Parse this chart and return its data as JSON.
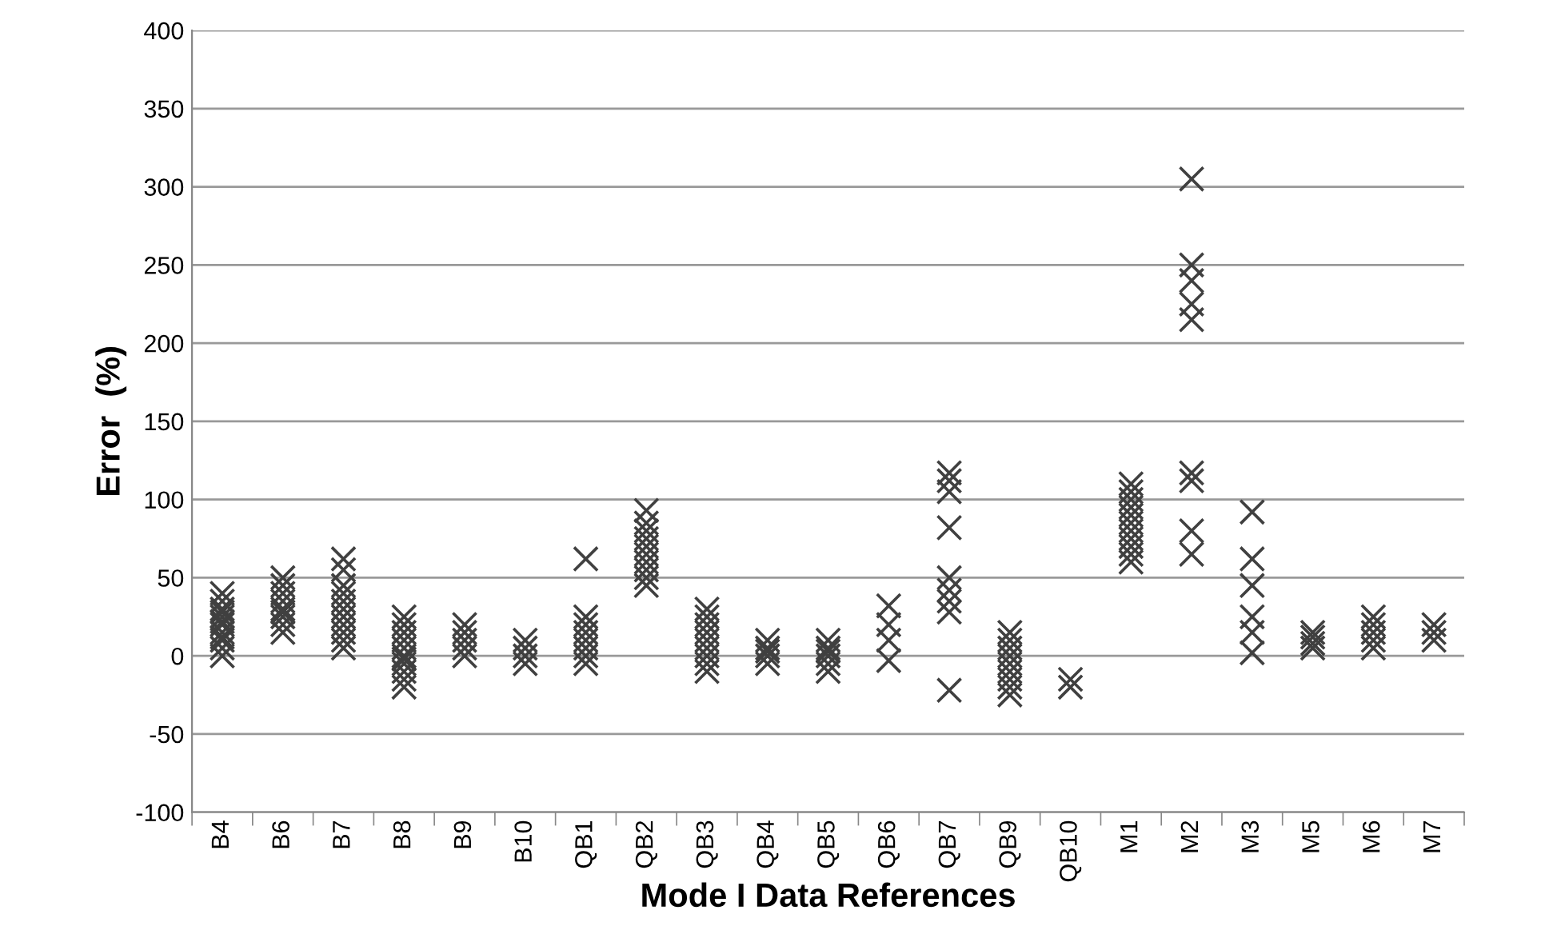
{
  "chart_data": {
    "type": "scatter",
    "xlabel": "Mode I Data References",
    "ylabel": "Error  (%)",
    "categories": [
      "B4",
      "B6",
      "B7",
      "B8",
      "B9",
      "B10",
      "QB1",
      "QB2",
      "QB3",
      "QB4",
      "QB5",
      "QB6",
      "QB7",
      "QB9",
      "QB10",
      "M1",
      "M2",
      "M3",
      "M5",
      "M6",
      "M7"
    ],
    "ylim": [
      -100,
      400
    ],
    "yticks": [
      -100,
      -50,
      0,
      50,
      100,
      150,
      200,
      250,
      300,
      350,
      400
    ],
    "grid": "y",
    "marker": "cross",
    "series": [
      {
        "color": "#404040",
        "x": [
          "B4",
          "B4",
          "B4",
          "B4",
          "B4",
          "B4",
          "B4",
          "B4",
          "B4",
          "B4",
          "B4",
          "B4",
          "B6",
          "B6",
          "B6",
          "B6",
          "B6",
          "B6",
          "B6",
          "B6",
          "B6",
          "B7",
          "B7",
          "B7",
          "B7",
          "B7",
          "B7",
          "B7",
          "B7",
          "B7",
          "B7",
          "B7",
          "B8",
          "B8",
          "B8",
          "B8",
          "B8",
          "B8",
          "B8",
          "B8",
          "B8",
          "B8",
          "B8",
          "B9",
          "B9",
          "B9",
          "B9",
          "B9",
          "B10",
          "B10",
          "B10",
          "B10",
          "QB1",
          "QB1",
          "QB1",
          "QB1",
          "QB1",
          "QB1",
          "QB1",
          "QB1",
          "QB2",
          "QB2",
          "QB2",
          "QB2",
          "QB2",
          "QB2",
          "QB2",
          "QB2",
          "QB2",
          "QB2",
          "QB3",
          "QB3",
          "QB3",
          "QB3",
          "QB3",
          "QB3",
          "QB3",
          "QB3",
          "QB3",
          "QB4",
          "QB4",
          "QB4",
          "QB4",
          "QB4",
          "QB5",
          "QB5",
          "QB5",
          "QB5",
          "QB5",
          "QB5",
          "QB6",
          "QB6",
          "QB6",
          "QB6",
          "QB7",
          "QB7",
          "QB7",
          "QB7",
          "QB7",
          "QB7",
          "QB7",
          "QB7",
          "QB7",
          "QB9",
          "QB9",
          "QB9",
          "QB9",
          "QB9",
          "QB9",
          "QB9",
          "QB9",
          "QB9",
          "QB10",
          "QB10",
          "M1",
          "M1",
          "M1",
          "M1",
          "M1",
          "M1",
          "M1",
          "M1",
          "M1",
          "M1",
          "M1",
          "M2",
          "M2",
          "M2",
          "M2",
          "M2",
          "M2",
          "M2",
          "M2",
          "M2",
          "M3",
          "M3",
          "M3",
          "M3",
          "M3",
          "M3",
          "M5",
          "M5",
          "M5",
          "M5",
          "M6",
          "M6",
          "M6",
          "M6",
          "M6",
          "M7",
          "M7",
          "M7"
        ],
        "values": [
          0,
          5,
          10,
          15,
          20,
          25,
          30,
          35,
          40,
          12,
          22,
          28,
          15,
          20,
          25,
          30,
          35,
          40,
          45,
          50,
          28,
          5,
          10,
          15,
          20,
          25,
          30,
          35,
          40,
          45,
          55,
          62,
          -20,
          -15,
          -10,
          -5,
          0,
          5,
          10,
          15,
          20,
          25,
          -2,
          0,
          5,
          10,
          15,
          20,
          -5,
          0,
          5,
          10,
          -5,
          0,
          5,
          10,
          15,
          20,
          25,
          62,
          45,
          50,
          55,
          60,
          65,
          70,
          75,
          80,
          85,
          93,
          -10,
          -5,
          0,
          5,
          10,
          15,
          20,
          25,
          30,
          -5,
          0,
          3,
          5,
          10,
          -10,
          -5,
          0,
          3,
          5,
          10,
          -3,
          10,
          20,
          32,
          -22,
          28,
          35,
          42,
          50,
          82,
          105,
          112,
          117,
          -25,
          -20,
          -15,
          -10,
          -5,
          0,
          5,
          10,
          15,
          -20,
          -15,
          60,
          65,
          70,
          75,
          80,
          85,
          90,
          95,
          100,
          105,
          110,
          65,
          80,
          112,
          117,
          215,
          225,
          240,
          250,
          305,
          2,
          15,
          25,
          45,
          62,
          92,
          5,
          8,
          12,
          15,
          5,
          10,
          15,
          20,
          25,
          10,
          15,
          20
        ]
      }
    ]
  }
}
